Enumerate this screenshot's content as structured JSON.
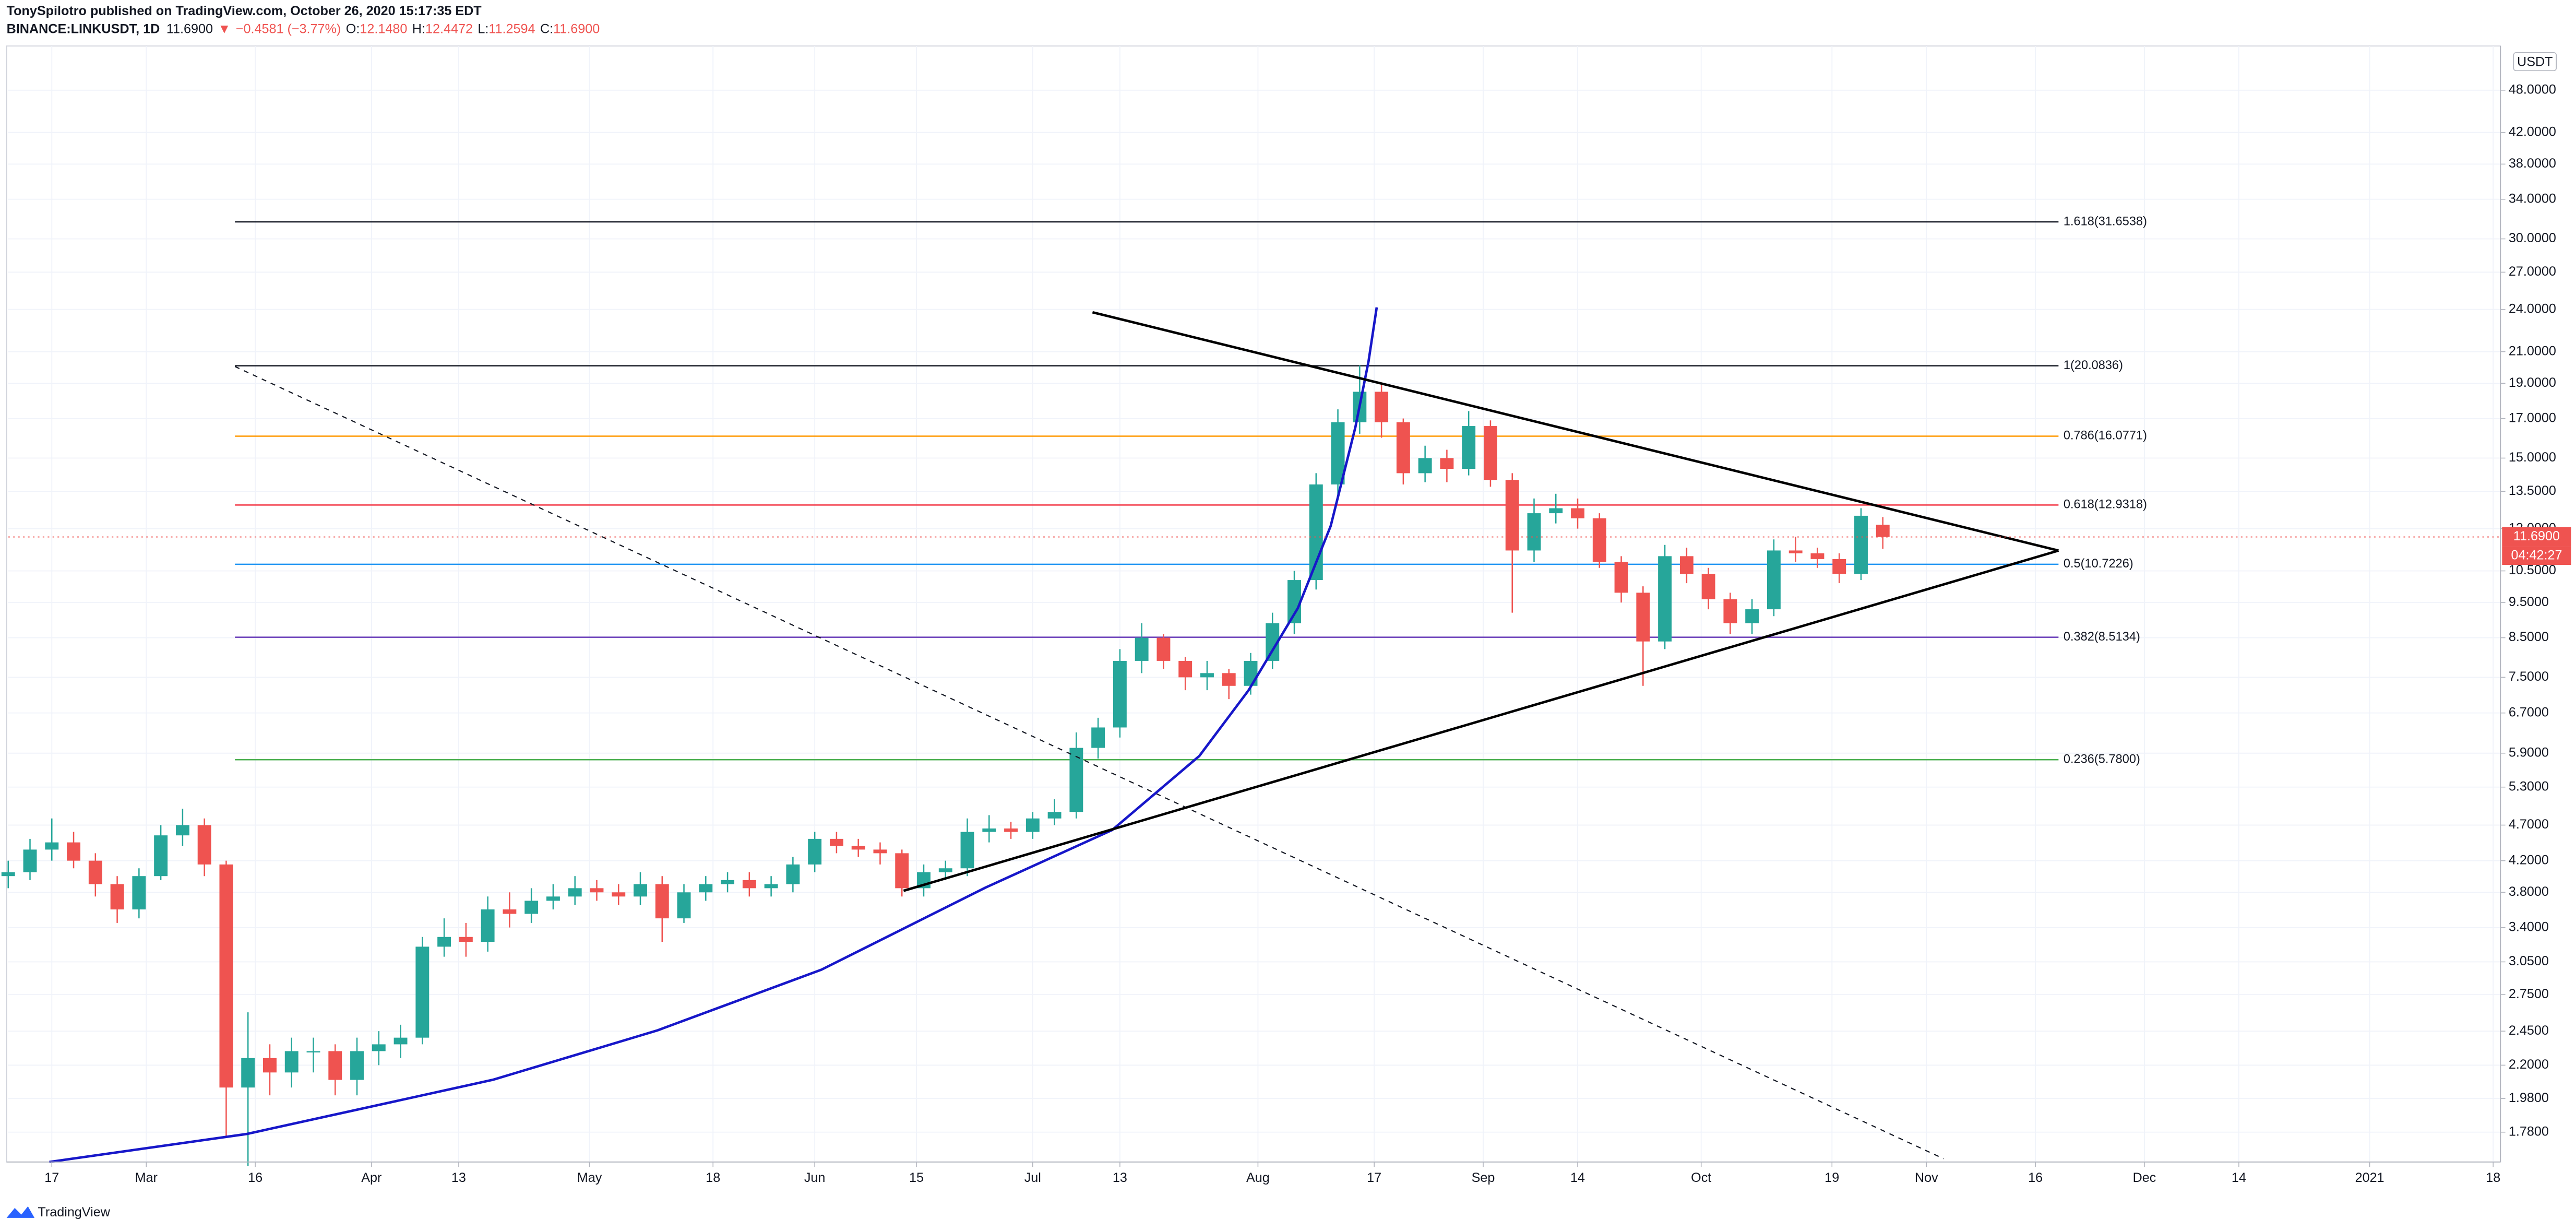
{
  "header": {
    "publisher": "TonySpilotro published on TradingView.com, October 26, 2020 15:17:35 EDT",
    "symbol": "BINANCE:LINKUSDT, 1D",
    "last": "11.6900",
    "arrow": "▼",
    "change": "−0.4581 (−3.77%)",
    "open_label": "O:",
    "open": "12.1480",
    "high_label": "H:",
    "high": "12.4472",
    "low_label": "L:",
    "low": "11.2594",
    "close_label": "C:",
    "close": "11.6900"
  },
  "chart_data": {
    "type": "candlestick",
    "log_scale": true,
    "grid": true,
    "up_color": "#26a69a",
    "down_color": "#ef5350",
    "currency": "USDT",
    "x": [
      "2020-02-11",
      "2020-02-14",
      "2020-02-17",
      "2020-02-20",
      "2020-02-23",
      "2020-02-26",
      "2020-02-29",
      "2020-03-03",
      "2020-03-06",
      "2020-03-09",
      "2020-03-12",
      "2020-03-15",
      "2020-03-18",
      "2020-03-21",
      "2020-03-24",
      "2020-03-27",
      "2020-03-30",
      "2020-04-02",
      "2020-04-05",
      "2020-04-08",
      "2020-04-11",
      "2020-04-14",
      "2020-04-17",
      "2020-04-20",
      "2020-04-23",
      "2020-04-26",
      "2020-04-29",
      "2020-05-02",
      "2020-05-05",
      "2020-05-08",
      "2020-05-11",
      "2020-05-14",
      "2020-05-17",
      "2020-05-20",
      "2020-05-23",
      "2020-05-26",
      "2020-05-29",
      "2020-06-01",
      "2020-06-04",
      "2020-06-07",
      "2020-06-10",
      "2020-06-13",
      "2020-06-16",
      "2020-06-19",
      "2020-06-22",
      "2020-06-25",
      "2020-06-28",
      "2020-07-01",
      "2020-07-04",
      "2020-07-07",
      "2020-07-10",
      "2020-07-13",
      "2020-07-16",
      "2020-07-19",
      "2020-07-22",
      "2020-07-25",
      "2020-07-28",
      "2020-07-31",
      "2020-08-03",
      "2020-08-06",
      "2020-08-09",
      "2020-08-12",
      "2020-08-15",
      "2020-08-18",
      "2020-08-21",
      "2020-08-24",
      "2020-08-27",
      "2020-08-30",
      "2020-09-02",
      "2020-09-05",
      "2020-09-08",
      "2020-09-11",
      "2020-09-14",
      "2020-09-17",
      "2020-09-20",
      "2020-09-23",
      "2020-09-26",
      "2020-09-29",
      "2020-10-02",
      "2020-10-05",
      "2020-10-08",
      "2020-10-11",
      "2020-10-14",
      "2020-10-17",
      "2020-10-20",
      "2020-10-23",
      "2020-10-26"
    ],
    "open": [
      4.0,
      4.05,
      4.35,
      4.45,
      4.2,
      3.9,
      3.6,
      4.0,
      4.55,
      4.7,
      4.15,
      2.05,
      2.25,
      2.15,
      2.3,
      2.3,
      2.1,
      2.3,
      2.35,
      2.4,
      3.2,
      3.3,
      3.25,
      3.6,
      3.55,
      3.7,
      3.75,
      3.85,
      3.8,
      3.75,
      3.9,
      3.5,
      3.8,
      3.9,
      3.95,
      3.85,
      3.9,
      4.15,
      4.5,
      4.4,
      4.35,
      4.3,
      3.85,
      4.05,
      4.1,
      4.6,
      4.65,
      4.6,
      4.8,
      4.9,
      6.0,
      6.4,
      7.9,
      8.5,
      7.9,
      7.5,
      7.6,
      7.3,
      7.9,
      8.9,
      10.2,
      13.8,
      16.8,
      18.5,
      16.8,
      14.3,
      15.0,
      14.5,
      16.6,
      14.0,
      11.2,
      12.6,
      12.8,
      12.4,
      10.8,
      9.8,
      8.4,
      11.0,
      10.4,
      9.6,
      8.9,
      9.3,
      11.2,
      11.1,
      10.9,
      10.4,
      12.148
    ],
    "high": [
      4.2,
      4.5,
      4.8,
      4.6,
      4.3,
      4.0,
      4.1,
      4.7,
      4.95,
      4.8,
      4.2,
      2.6,
      2.35,
      2.4,
      2.4,
      2.35,
      2.4,
      2.45,
      2.5,
      3.3,
      3.5,
      3.45,
      3.75,
      3.8,
      3.85,
      3.9,
      4.0,
      3.95,
      3.9,
      4.05,
      4.0,
      3.9,
      4.0,
      4.05,
      4.05,
      4.0,
      4.25,
      4.6,
      4.6,
      4.5,
      4.45,
      4.35,
      4.15,
      4.2,
      4.8,
      4.85,
      4.75,
      4.9,
      5.1,
      6.3,
      6.6,
      8.2,
      8.9,
      8.6,
      8.0,
      7.9,
      7.7,
      8.1,
      9.2,
      10.5,
      14.3,
      17.5,
      20.1,
      18.9,
      17.0,
      15.6,
      15.4,
      17.4,
      16.9,
      14.3,
      13.2,
      13.4,
      13.2,
      12.6,
      11.0,
      10.0,
      11.4,
      11.3,
      10.6,
      9.8,
      9.6,
      11.6,
      11.7,
      11.3,
      11.1,
      12.8,
      12.4472
    ],
    "low": [
      3.85,
      3.95,
      4.2,
      4.1,
      3.75,
      3.45,
      3.5,
      3.95,
      4.4,
      4.0,
      1.75,
      1.6,
      2.0,
      2.05,
      2.15,
      2.0,
      2.0,
      2.2,
      2.25,
      2.35,
      3.1,
      3.1,
      3.15,
      3.4,
      3.45,
      3.6,
      3.65,
      3.7,
      3.65,
      3.65,
      3.25,
      3.45,
      3.7,
      3.8,
      3.75,
      3.75,
      3.8,
      4.05,
      4.3,
      4.25,
      4.15,
      3.75,
      3.75,
      3.95,
      4.0,
      4.45,
      4.5,
      4.5,
      4.7,
      4.8,
      5.8,
      6.2,
      7.6,
      7.7,
      7.2,
      7.2,
      7.0,
      7.1,
      7.7,
      8.6,
      9.9,
      13.2,
      16.2,
      16.0,
      13.8,
      13.9,
      13.9,
      14.2,
      13.7,
      9.2,
      10.8,
      12.2,
      12.0,
      10.6,
      9.5,
      7.3,
      8.2,
      10.1,
      9.3,
      8.6,
      8.6,
      9.1,
      10.8,
      10.6,
      10.1,
      10.2,
      11.2594
    ],
    "close": [
      4.05,
      4.35,
      4.45,
      4.2,
      3.9,
      3.6,
      4.0,
      4.55,
      4.7,
      4.15,
      2.05,
      2.25,
      2.15,
      2.3,
      2.3,
      2.1,
      2.3,
      2.35,
      2.4,
      3.2,
      3.3,
      3.25,
      3.6,
      3.55,
      3.7,
      3.75,
      3.85,
      3.8,
      3.75,
      3.9,
      3.5,
      3.8,
      3.9,
      3.95,
      3.85,
      3.9,
      4.15,
      4.5,
      4.4,
      4.35,
      4.3,
      3.85,
      4.05,
      4.1,
      4.6,
      4.65,
      4.6,
      4.8,
      4.9,
      6.0,
      6.4,
      7.9,
      8.5,
      7.9,
      7.5,
      7.6,
      7.3,
      7.9,
      8.9,
      10.2,
      13.8,
      16.8,
      18.5,
      16.8,
      14.3,
      15.0,
      14.5,
      16.6,
      14.0,
      11.2,
      12.6,
      12.8,
      12.4,
      10.8,
      9.8,
      8.4,
      11.0,
      10.4,
      9.6,
      8.9,
      9.3,
      11.2,
      11.1,
      10.9,
      10.4,
      12.5,
      11.69
    ],
    "xlim": [
      "2020-02-11",
      "2021-01-19"
    ],
    "xticks": [
      {
        "value": "2020-02-17",
        "label": "17"
      },
      {
        "value": "2020-03-01",
        "label": "Mar"
      },
      {
        "value": "2020-03-16",
        "label": "16"
      },
      {
        "value": "2020-04-01",
        "label": "Apr"
      },
      {
        "value": "2020-04-13",
        "label": "13"
      },
      {
        "value": "2020-05-01",
        "label": "May"
      },
      {
        "value": "2020-05-18",
        "label": "18"
      },
      {
        "value": "2020-06-01",
        "label": "Jun"
      },
      {
        "value": "2020-06-15",
        "label": "15"
      },
      {
        "value": "2020-07-01",
        "label": "Jul"
      },
      {
        "value": "2020-07-13",
        "label": "13"
      },
      {
        "value": "2020-08-01",
        "label": "Aug"
      },
      {
        "value": "2020-08-17",
        "label": "17"
      },
      {
        "value": "2020-09-01",
        "label": "Sep"
      },
      {
        "value": "2020-09-14",
        "label": "14"
      },
      {
        "value": "2020-10-01",
        "label": "Oct"
      },
      {
        "value": "2020-10-19",
        "label": "19"
      },
      {
        "value": "2020-11-01",
        "label": "Nov"
      },
      {
        "value": "2020-11-16",
        "label": "16"
      },
      {
        "value": "2020-12-01",
        "label": "Dec"
      },
      {
        "value": "2020-12-14",
        "label": "14"
      },
      {
        "value": "2021-01-01",
        "label": "2021"
      },
      {
        "value": "2021-01-18",
        "label": "18"
      }
    ],
    "ylim": [
      1.62,
      55.2
    ],
    "yticks": [
      {
        "value": 48,
        "label": "48.0000"
      },
      {
        "value": 42,
        "label": "42.0000"
      },
      {
        "value": 38,
        "label": "38.0000"
      },
      {
        "value": 34,
        "label": "34.0000"
      },
      {
        "value": 30,
        "label": "30.0000"
      },
      {
        "value": 27,
        "label": "27.0000"
      },
      {
        "value": 24,
        "label": "24.0000"
      },
      {
        "value": 21,
        "label": "21.0000"
      },
      {
        "value": 19,
        "label": "19.0000"
      },
      {
        "value": 17,
        "label": "17.0000"
      },
      {
        "value": 15,
        "label": "15.0000"
      },
      {
        "value": 13.5,
        "label": "13.5000"
      },
      {
        "value": 12,
        "label": "12.0000"
      },
      {
        "value": 10.5,
        "label": "10.5000"
      },
      {
        "value": 9.5,
        "label": "9.5000"
      },
      {
        "value": 8.5,
        "label": "8.5000"
      },
      {
        "value": 7.5,
        "label": "7.5000"
      },
      {
        "value": 6.7,
        "label": "6.7000"
      },
      {
        "value": 5.9,
        "label": "5.9000"
      },
      {
        "value": 5.3,
        "label": "5.3000"
      },
      {
        "value": 4.7,
        "label": "4.7000"
      },
      {
        "value": 4.2,
        "label": "4.2000"
      },
      {
        "value": 3.8,
        "label": "3.8000"
      },
      {
        "value": 3.4,
        "label": "3.4000"
      },
      {
        "value": 3.05,
        "label": "3.0500"
      },
      {
        "value": 2.75,
        "label": "2.7500"
      },
      {
        "value": 2.45,
        "label": "2.4500"
      },
      {
        "value": 2.2,
        "label": "2.2000"
      },
      {
        "value": 1.98,
        "label": "1.9800"
      },
      {
        "value": 1.78,
        "label": "1.7800"
      }
    ],
    "fib_levels": [
      {
        "label": "1.618(31.6538)",
        "value": 31.6538,
        "color": "#131722"
      },
      {
        "label": "1(20.0836)",
        "value": 20.0836,
        "color": "#131722"
      },
      {
        "label": "0.786(16.0771)",
        "value": 16.0771,
        "color": "#ff9800"
      },
      {
        "label": "0.618(12.9318)",
        "value": 12.9318,
        "color": "#f23645"
      },
      {
        "label": "0.5(10.7226)",
        "value": 10.7226,
        "color": "#2196f3"
      },
      {
        "label": "0.382(8.5134)",
        "value": 8.5134,
        "color": "#673ab7"
      },
      {
        "label": "0.236(5.7800)",
        "value": 5.78,
        "color": "#4caf50"
      }
    ],
    "last_price": {
      "value": 11.69,
      "label": "11.6900"
    },
    "countdown": "04:42:27"
  },
  "footer": {
    "logo": "TradingView"
  }
}
